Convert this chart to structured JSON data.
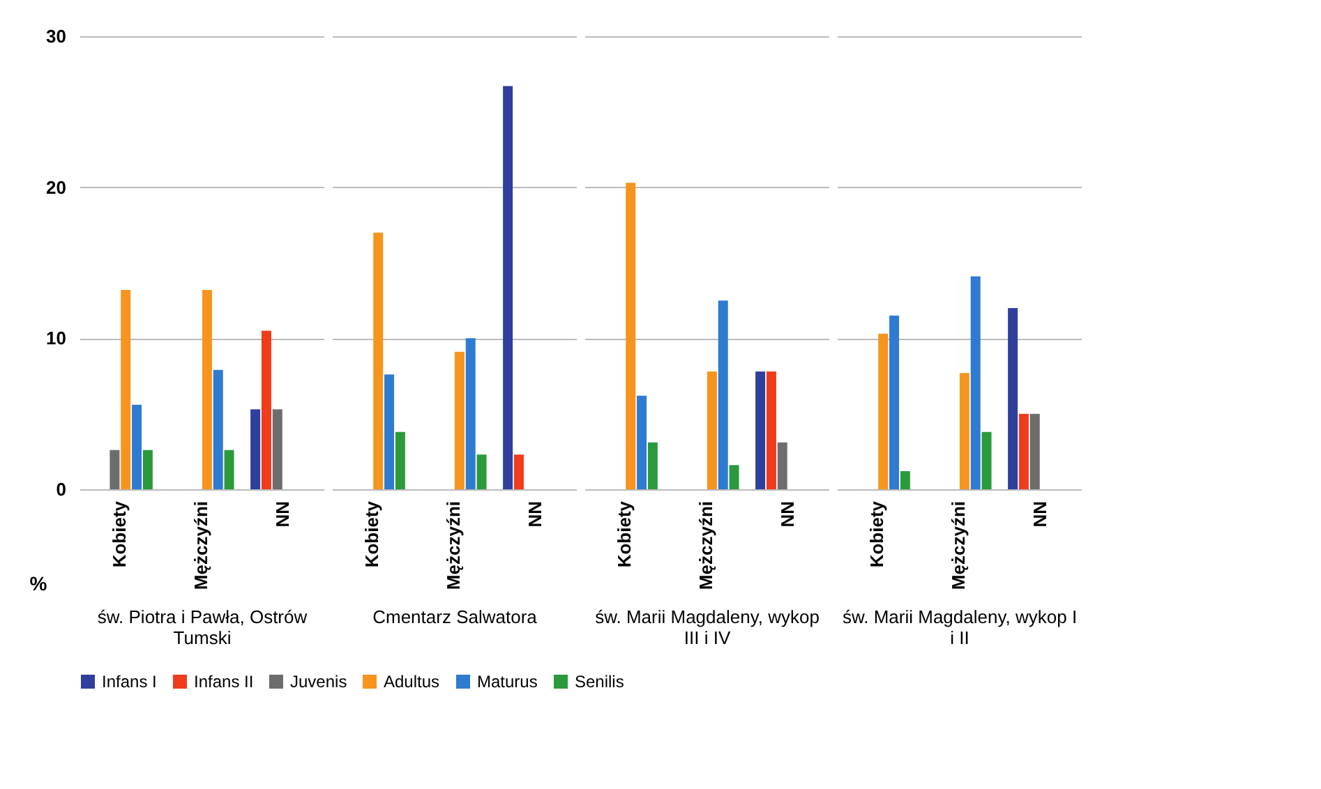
{
  "chart_data": [
    {
      "type": "bar",
      "xlabel": "św. Piotra i Pawła, Ostrów Tumski",
      "ylabel": "%",
      "categories": [
        "Kobiety",
        "Mężczyźni",
        "NN"
      ],
      "ylim": [
        0,
        30
      ],
      "yticks": [
        0,
        10,
        20,
        30
      ],
      "grid": "y",
      "legend": "bottom",
      "series": [
        {
          "name": "Infans I",
          "color": "#2e3f9e",
          "values": [
            null,
            null,
            5.3
          ]
        },
        {
          "name": "Infans II",
          "color": "#f03c1c",
          "values": [
            null,
            null,
            10.5
          ]
        },
        {
          "name": "Juvenis",
          "color": "#6d6d6d",
          "values": [
            2.6,
            null,
            5.3
          ]
        },
        {
          "name": "Adultus",
          "color": "#f7941d",
          "values": [
            13.2,
            13.2,
            null
          ]
        },
        {
          "name": "Maturus",
          "color": "#2e7bd1",
          "values": [
            5.6,
            7.9,
            null
          ]
        },
        {
          "name": "Senilis",
          "color": "#2a9a3c",
          "values": [
            2.6,
            2.6,
            null
          ]
        }
      ]
    },
    {
      "type": "bar",
      "xlabel": "Cmentarz Salwatora",
      "categories": [
        "Kobiety",
        "Mężczyźni",
        "NN"
      ],
      "ylim": [
        0,
        30
      ],
      "yticks": [
        0,
        10,
        20,
        30
      ],
      "grid": "y",
      "legend": "bottom",
      "tick_labels": "x",
      "series": [
        {
          "name": "Infans I",
          "color": "#2e3f9e",
          "values": [
            null,
            null,
            26.7
          ]
        },
        {
          "name": "Infans II",
          "color": "#f03c1c",
          "values": [
            null,
            null,
            2.3
          ]
        },
        {
          "name": "Juvenis",
          "color": "#6d6d6d",
          "values": [
            null,
            null,
            null
          ]
        },
        {
          "name": "Adultus",
          "color": "#f7941d",
          "values": [
            17.0,
            9.1,
            null
          ]
        },
        {
          "name": "Maturus",
          "color": "#2e7bd1",
          "values": [
            7.6,
            10.0,
            null
          ]
        },
        {
          "name": "Senilis",
          "color": "#2a9a3c",
          "values": [
            3.8,
            2.3,
            null
          ]
        }
      ]
    },
    {
      "type": "bar",
      "xlabel": "św. Marii Magdaleny, wykop III i IV",
      "categories": [
        "Kobiety",
        "Mężczyźni",
        "NN"
      ],
      "ylim": [
        0,
        30
      ],
      "yticks": [
        0,
        10,
        20,
        30
      ],
      "grid": "y",
      "legend": "bottom",
      "tick_labels": "x",
      "series": [
        {
          "name": "Infans I",
          "color": "#2e3f9e",
          "values": [
            null,
            null,
            7.8
          ]
        },
        {
          "name": "Infans II",
          "color": "#f03c1c",
          "values": [
            null,
            null,
            7.8
          ]
        },
        {
          "name": "Juvenis",
          "color": "#6d6d6d",
          "values": [
            null,
            null,
            3.1
          ]
        },
        {
          "name": "Adultus",
          "color": "#f7941d",
          "values": [
            20.3,
            7.8,
            null
          ]
        },
        {
          "name": "Maturus",
          "color": "#2e7bd1",
          "values": [
            6.2,
            12.5,
            null
          ]
        },
        {
          "name": "Senilis",
          "color": "#2a9a3c",
          "values": [
            3.1,
            1.6,
            null
          ]
        }
      ]
    },
    {
      "type": "bar",
      "xlabel": "św. Marii Magdaleny, wykop I i II",
      "categories": [
        "Kobiety",
        "Mężczyźni",
        "NN"
      ],
      "ylim": [
        0,
        30
      ],
      "yticks": [
        0,
        10,
        20,
        30
      ],
      "grid": "y",
      "legend": "bottom",
      "tick_labels": "x",
      "series": [
        {
          "name": "Infans I",
          "color": "#2e3f9e",
          "values": [
            null,
            null,
            12.0
          ]
        },
        {
          "name": "Infans II",
          "color": "#f03c1c",
          "values": [
            null,
            null,
            5.0
          ]
        },
        {
          "name": "Juvenis",
          "color": "#6d6d6d",
          "values": [
            null,
            null,
            5.0
          ]
        },
        {
          "name": "Adultus",
          "color": "#f7941d",
          "values": [
            10.3,
            7.7,
            null
          ]
        },
        {
          "name": "Maturus",
          "color": "#2e7bd1",
          "values": [
            11.5,
            14.1,
            null
          ]
        },
        {
          "name": "Senilis",
          "color": "#2a9a3c",
          "values": [
            1.2,
            3.8,
            null
          ]
        }
      ]
    }
  ]
}
